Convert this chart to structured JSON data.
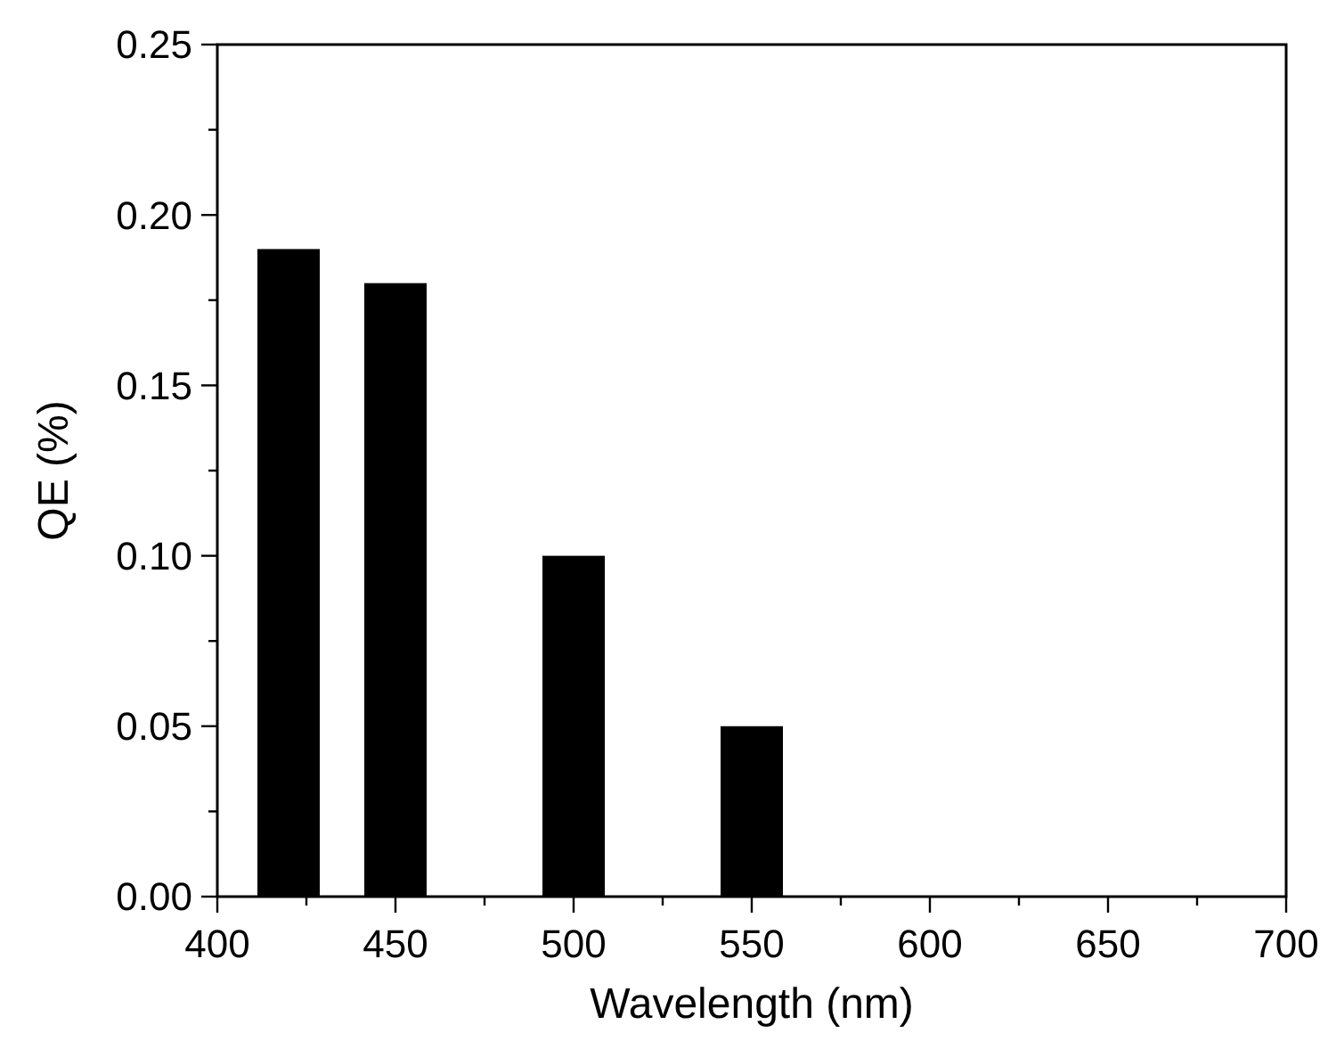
{
  "chart_data": {
    "type": "bar",
    "xlabel": "Wavelength (nm)",
    "ylabel": "QE (%)",
    "x": [
      420,
      450,
      500,
      550
    ],
    "values": [
      0.19,
      0.18,
      0.1,
      0.05
    ],
    "color": "#000000",
    "xlim": [
      400,
      700
    ],
    "xticks": [
      400,
      {
        "value": 425,
        "label": null
      },
      450,
      {
        "value": 475,
        "label": null
      },
      500,
      {
        "value": 525,
        "label": null
      },
      550,
      {
        "value": 575,
        "label": null
      },
      600,
      {
        "value": 625,
        "label": null
      },
      650,
      {
        "value": 675,
        "label": null
      },
      700
    ],
    "ylim": [
      0,
      0.25
    ],
    "yticks": [
      {
        "value": 0,
        "label": "0.00"
      },
      {
        "value": 0.025,
        "label": null
      },
      {
        "value": 0.05,
        "label": "0.05"
      },
      {
        "value": 0.075,
        "label": null
      },
      {
        "value": 0.1,
        "label": "0.10"
      },
      {
        "value": 0.125,
        "label": null
      },
      {
        "value": 0.15,
        "label": "0.15"
      },
      {
        "value": 0.175,
        "label": null
      },
      {
        "value": 0.2,
        "label": "0.20"
      },
      {
        "value": 0.225,
        "label": null
      },
      {
        "value": 0.25,
        "label": "0.25"
      }
    ]
  }
}
